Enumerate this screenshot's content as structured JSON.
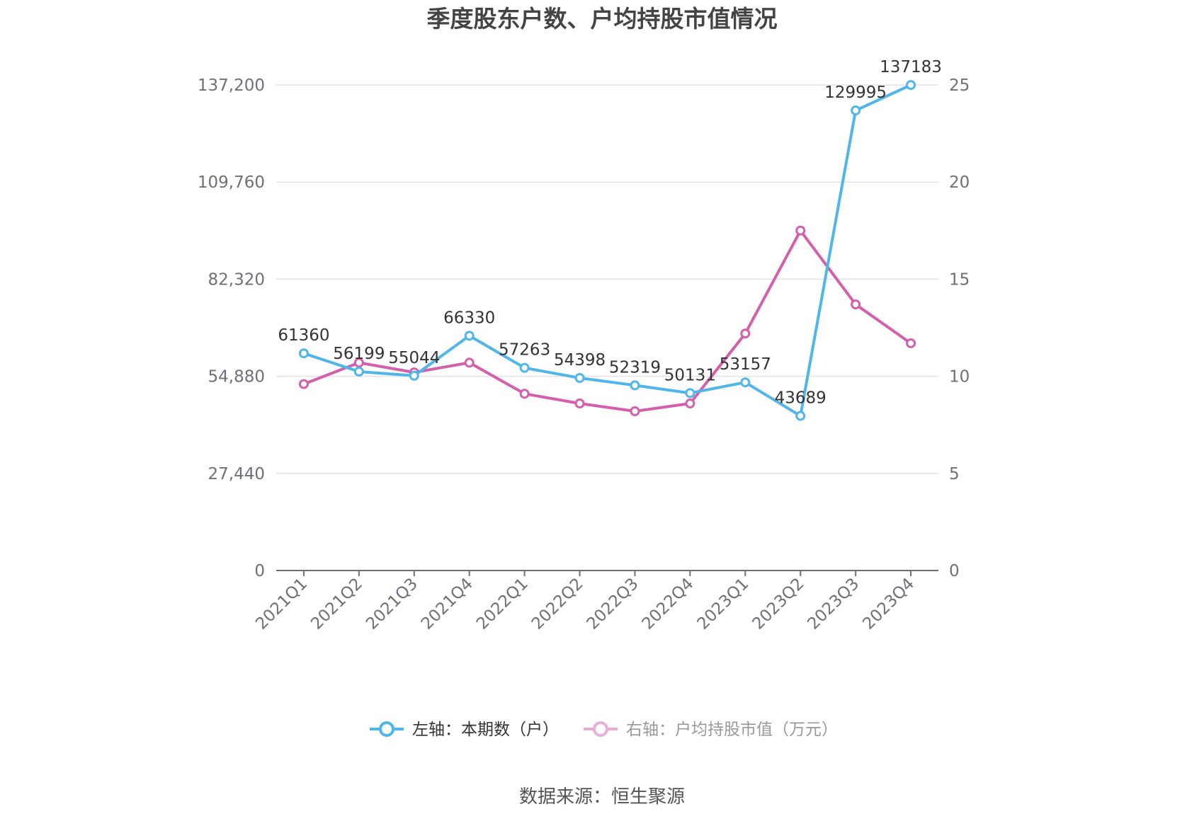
{
  "chart_data": {
    "type": "line",
    "title": "季度股东户数、户均持股市值情况",
    "categories": [
      "2021Q1",
      "2021Q2",
      "2021Q3",
      "2021Q4",
      "2022Q1",
      "2022Q2",
      "2022Q3",
      "2022Q4",
      "2023Q1",
      "2023Q2",
      "2023Q3",
      "2023Q4"
    ],
    "left_axis": {
      "ticks": [
        "0",
        "27,440",
        "54,880",
        "82,320",
        "109,760",
        "137,200"
      ],
      "ylim": [
        0,
        137200
      ]
    },
    "right_axis": {
      "ticks": [
        "0",
        "5",
        "10",
        "15",
        "20",
        "25"
      ],
      "ylim": [
        0,
        25
      ]
    },
    "series": [
      {
        "name": "左轴：本期数（户）",
        "axis": "left",
        "color": "#4fb6ea",
        "values": [
          61360,
          56199,
          55044,
          66330,
          57263,
          54398,
          52319,
          50131,
          53157,
          43689,
          129995,
          137183
        ],
        "labels": [
          "61360",
          "56199",
          "55044",
          "66330",
          "57263",
          "54398",
          "52319",
          "50131",
          "53157",
          "43689",
          "129995",
          "137183"
        ]
      },
      {
        "name": "右轴：户均持股市值（万元）",
        "axis": "right",
        "color": "#d45fab",
        "values": [
          9.6,
          10.7,
          10.2,
          10.7,
          9.1,
          8.6,
          8.2,
          8.6,
          12.2,
          17.5,
          13.7,
          11.7
        ]
      }
    ],
    "legend_position": "bottom",
    "grid": true
  },
  "source_text": "数据来源：恒生聚源"
}
